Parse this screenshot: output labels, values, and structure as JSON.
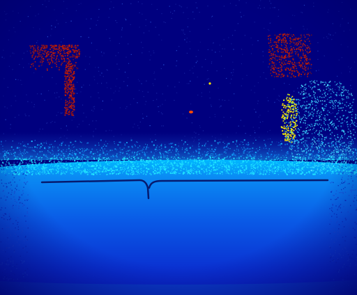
{
  "image": {
    "kind": "depth-map-colorized",
    "colormap": "jet",
    "palette": {
      "far": "#00007f",
      "far_mid": "#0a1aa6",
      "floor_top": "#00c8ff",
      "floor_mid": "#0a7af0",
      "floor_bottom": "#0a2ad0",
      "near_edge": "#0b5ad8",
      "edge_line": "#061a6e",
      "cyan_speckle": "#22e6ff",
      "yellow_blob": "#ffe600",
      "red_blob": "#c81e00"
    }
  }
}
